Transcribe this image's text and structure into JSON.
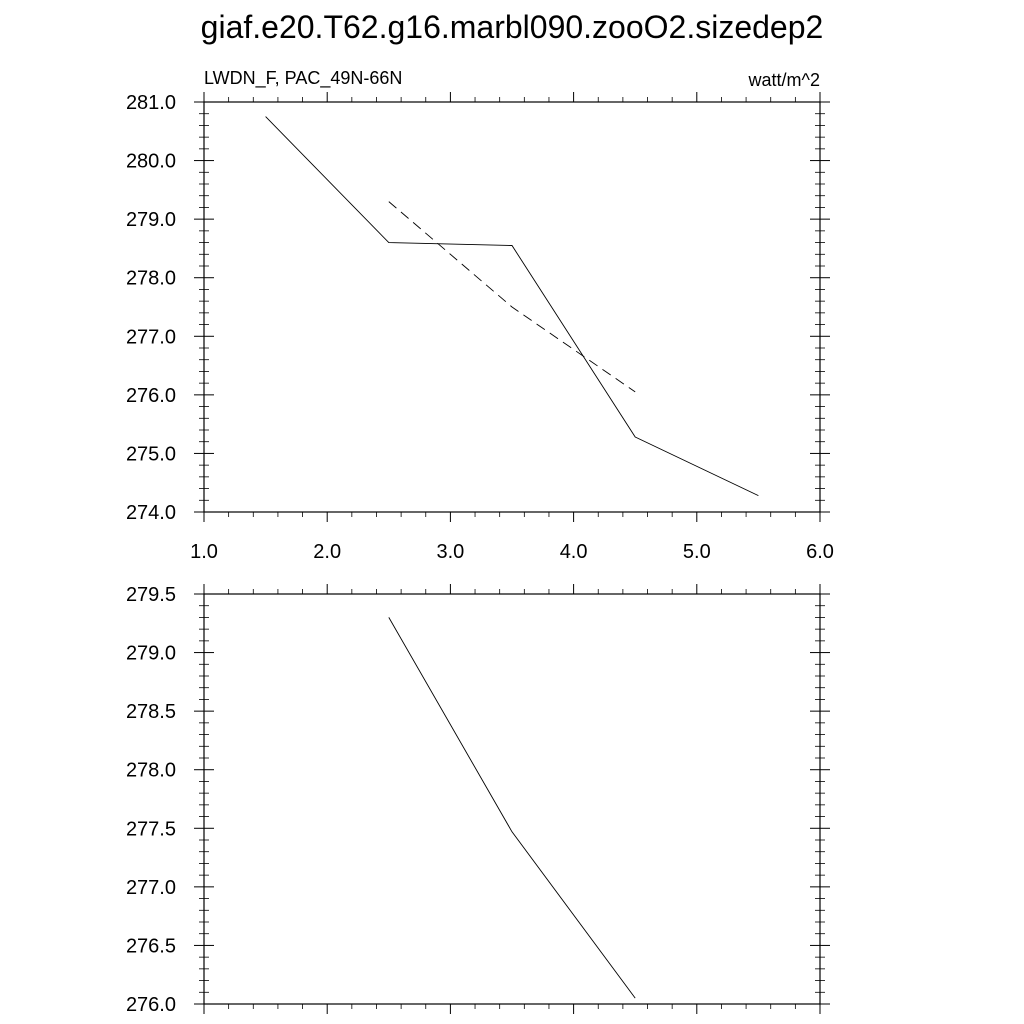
{
  "figure": {
    "title": "giaf.e20.T62.g16.marbl090.zooO2.sizedep2"
  },
  "chart_data": [
    {
      "type": "line",
      "left_label": "LWDN_F, PAC_49N-66N",
      "right_label": "watt/m^2",
      "xlim": [
        1.0,
        6.0
      ],
      "ylim": [
        274.0,
        281.0
      ],
      "x_ticks": [
        "1.0",
        "2.0",
        "3.0",
        "4.0",
        "5.0",
        "6.0"
      ],
      "y_ticks": [
        "274.0",
        "275.0",
        "276.0",
        "277.0",
        "278.0",
        "279.0",
        "280.0",
        "281.0"
      ],
      "grid": false,
      "series": [
        {
          "style": "solid",
          "color": "#000000",
          "x": [
            1.5,
            2.5,
            3.5,
            4.5,
            5.5
          ],
          "y": [
            280.75,
            278.6,
            278.55,
            275.28,
            274.28
          ]
        },
        {
          "style": "dashed",
          "color": "#000000",
          "x": [
            2.5,
            3.5,
            4.5
          ],
          "y": [
            279.3,
            277.5,
            276.05
          ]
        }
      ]
    },
    {
      "type": "line",
      "xlim": [
        1.0,
        6.0
      ],
      "ylim": [
        276.0,
        279.5
      ],
      "x_ticks": [],
      "y_ticks": [
        "276.0",
        "276.5",
        "277.0",
        "277.5",
        "278.0",
        "278.5",
        "279.0",
        "279.5"
      ],
      "grid": false,
      "series": [
        {
          "style": "solid",
          "color": "#000000",
          "x": [
            2.5,
            3.5,
            4.5
          ],
          "y": [
            279.3,
            277.47,
            276.05
          ]
        }
      ]
    }
  ]
}
